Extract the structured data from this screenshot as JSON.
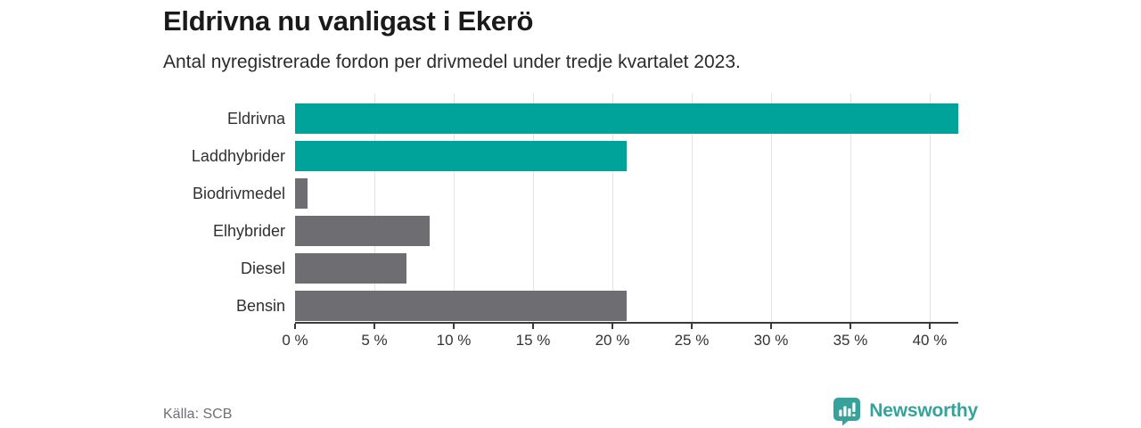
{
  "header": {
    "title": "Eldrivna nu vanligast i Ekerö",
    "subtitle": "Antal nyregistrerade fordon per drivmedel under tredje kvartalet 2023."
  },
  "chart_data": {
    "type": "bar",
    "orientation": "horizontal",
    "title": "Eldrivna nu vanligast i Ekerö",
    "subtitle": "Antal nyregistrerade fordon per drivmedel under tredje kvartalet 2023.",
    "categories": [
      "Eldrivna",
      "Laddhybrider",
      "Biodrivmedel",
      "Elhybrider",
      "Diesel",
      "Bensin"
    ],
    "values": [
      41.8,
      20.9,
      0.8,
      8.5,
      7.0,
      20.9
    ],
    "unit": "%",
    "bar_colors": [
      "#00a39a",
      "#00a39a",
      "#6e6e72",
      "#6e6e72",
      "#6e6e72",
      "#6e6e72"
    ],
    "x_ticks": [
      0,
      5,
      10,
      15,
      20,
      25,
      30,
      35,
      40
    ],
    "x_tick_labels": [
      "0 %",
      "5 %",
      "10 %",
      "15 %",
      "20 %",
      "25 %",
      "30 %",
      "35 %",
      "40 %"
    ],
    "xlim": [
      0,
      41.8
    ],
    "grid": true,
    "legend": false
  },
  "footer": {
    "source": "Källa: SCB",
    "logo_text": "Newsworthy"
  },
  "colors": {
    "accent_teal": "#00a39a",
    "neutral_gray": "#6e6e72",
    "logo_teal": "#37a29b",
    "axis": "#3a3a3a",
    "gridline": "#e3e3e3"
  }
}
